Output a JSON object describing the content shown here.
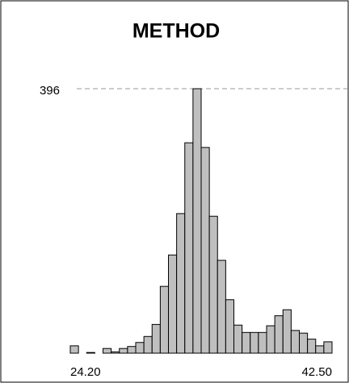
{
  "chart_data": {
    "type": "histogram",
    "title": "METHOD",
    "bins": [
      24.2,
      24.771875,
      25.34375,
      25.915625,
      26.4875,
      27.059375,
      27.63125,
      28.203125,
      28.775,
      29.346875,
      29.91875,
      30.490625,
      31.0625,
      31.634375,
      32.20625,
      32.778125,
      33.35,
      33.921875,
      34.49375,
      35.065625,
      35.6375,
      36.209375,
      36.78125,
      37.353125,
      37.925,
      38.496875,
      39.06875,
      39.640625,
      40.2125,
      40.784375,
      41.35625,
      41.928125,
      42.5
    ],
    "values": [
      11,
      0,
      1,
      0,
      7,
      2,
      7,
      10,
      16,
      25,
      43,
      100,
      147,
      209,
      315,
      396,
      308,
      205,
      139,
      80,
      42,
      31,
      31,
      31,
      41,
      56,
      65,
      34,
      30,
      21,
      11,
      17
    ],
    "color": "#bfbfbf",
    "xlim": [
      24.2,
      42.5
    ],
    "xticks": [
      {
        "value": 24.2,
        "label": "24.20"
      },
      {
        "value": 42.5,
        "label": "42.50"
      }
    ],
    "ylim": [
      0,
      396
    ],
    "yticks": [
      396
    ],
    "grid": true
  }
}
